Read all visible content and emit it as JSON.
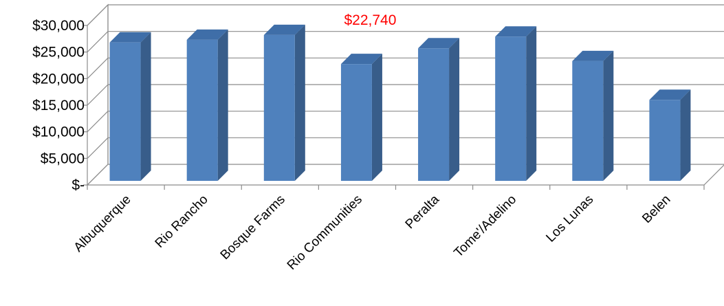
{
  "chart_data": {
    "type": "bar",
    "style": "3d-clustered-column",
    "categories": [
      "Albuquerque",
      "Rio Rancho",
      "Bosque Farms",
      "Rio Communities",
      "Peralta",
      "Tome'/Adelino",
      "Los Lunas",
      "Belen"
    ],
    "series": [
      {
        "values": [
          26800,
          27300,
          28200,
          22740,
          25700,
          27900,
          23300,
          16000
        ]
      }
    ],
    "y_tick_labels": [
      "$-",
      "$5,000",
      "$10,000",
      "$15,000",
      "$20,000",
      "$25,000",
      "$30,000"
    ],
    "ylim": [
      0,
      30000
    ],
    "y_step": 5000,
    "gridlines": true,
    "legend": "none",
    "annotations": [
      {
        "category": "Rio Communities",
        "text": "$22,740",
        "color": "#ff0000"
      }
    ],
    "colors": {
      "bar_front": "#4f81bd",
      "bar_side": "#385d8a",
      "bar_top": "#3f6ea8",
      "grid": "#8c8c8c",
      "text": "#000000"
    }
  }
}
